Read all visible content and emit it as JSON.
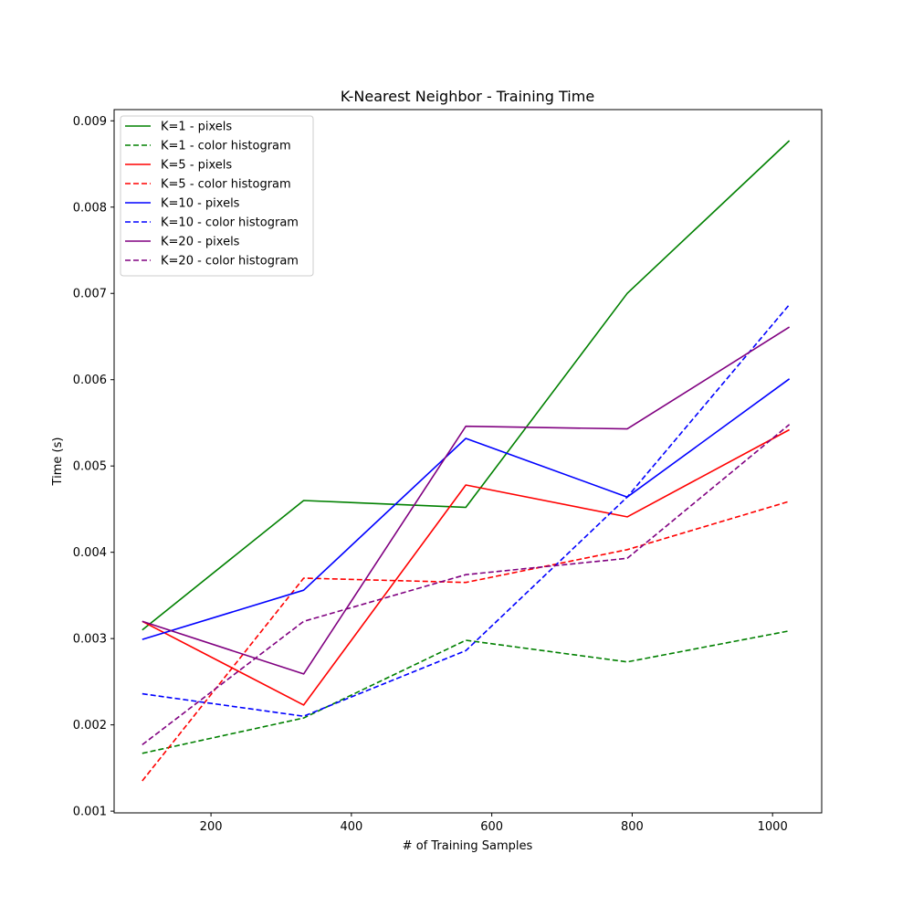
{
  "chart_data": {
    "type": "line",
    "title": "K-Nearest Neighbor - Training Time",
    "xlabel": "# of Training Samples",
    "ylabel": "Time (s)",
    "xlim": [
      62,
      1070
    ],
    "ylim": [
      0.00098,
      0.00913
    ],
    "xticks": [
      200,
      400,
      600,
      800,
      1000
    ],
    "yticks": [
      0.001,
      0.002,
      0.003,
      0.004,
      0.005,
      0.006,
      0.007,
      0.008,
      0.009
    ],
    "xtick_labels": [
      "200",
      "400",
      "600",
      "800",
      "1000"
    ],
    "ytick_labels": [
      "0.001",
      "0.002",
      "0.003",
      "0.004",
      "0.005",
      "0.006",
      "0.007",
      "0.008",
      "0.009"
    ],
    "grid": false,
    "legend_position": "upper-left",
    "x": [
      102,
      332,
      563,
      793,
      1024
    ],
    "series": [
      {
        "name": "K=1 - pixels",
        "color": "#008000",
        "dash": "solid",
        "values": [
          0.0031,
          0.0046,
          0.00452,
          0.007,
          0.00877
        ]
      },
      {
        "name": "K=1 - color histogram",
        "color": "#008000",
        "dash": "dashed",
        "values": [
          0.00167,
          0.00208,
          0.00298,
          0.00273,
          0.00309
        ]
      },
      {
        "name": "K=5 - pixels",
        "color": "#ff0000",
        "dash": "solid",
        "values": [
          0.0032,
          0.00223,
          0.00478,
          0.00441,
          0.00542
        ]
      },
      {
        "name": "K=5 - color histogram",
        "color": "#ff0000",
        "dash": "dashed",
        "values": [
          0.00135,
          0.0037,
          0.00365,
          0.00403,
          0.00459
        ]
      },
      {
        "name": "K=10 - pixels",
        "color": "#0000ff",
        "dash": "solid",
        "values": [
          0.00299,
          0.00356,
          0.00532,
          0.00464,
          0.00601
        ]
      },
      {
        "name": "K=10 - color histogram",
        "color": "#0000ff",
        "dash": "dashed",
        "values": [
          0.00236,
          0.0021,
          0.00286,
          0.00464,
          0.00687
        ]
      },
      {
        "name": "K=20 - pixels",
        "color": "#800080",
        "dash": "solid",
        "values": [
          0.0032,
          0.00259,
          0.00546,
          0.00543,
          0.00661
        ]
      },
      {
        "name": "K=20 - color histogram",
        "color": "#800080",
        "dash": "dashed",
        "values": [
          0.00177,
          0.0032,
          0.00374,
          0.00393,
          0.00548
        ]
      }
    ]
  }
}
